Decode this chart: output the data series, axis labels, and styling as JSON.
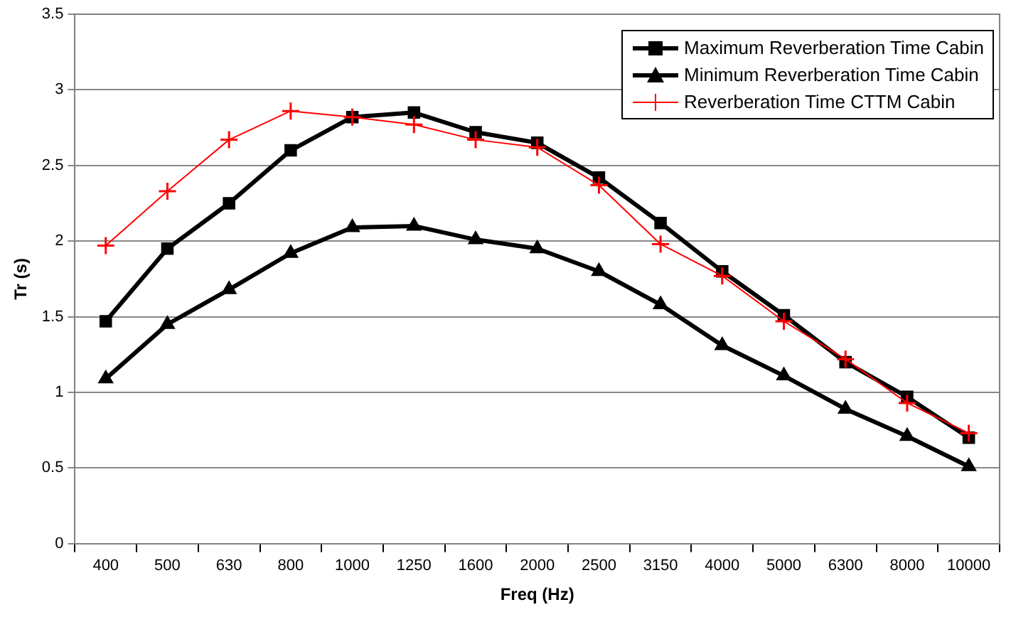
{
  "chart_data": {
    "type": "line",
    "xlabel": "Freq (Hz)",
    "ylabel": "Tr (s)",
    "categories": [
      "400",
      "500",
      "630",
      "800",
      "1000",
      "1250",
      "1600",
      "2000",
      "2500",
      "3150",
      "4000",
      "5000",
      "6300",
      "8000",
      "10000"
    ],
    "ylim": [
      0,
      3.5
    ],
    "yticks": [
      0,
      0.5,
      1,
      1.5,
      2,
      2.5,
      3,
      3.5
    ],
    "grid": "y",
    "legend": "top right",
    "line_style": "solid",
    "series": [
      {
        "name": "Maximum Reverberation Time Cabin",
        "color": "#000000",
        "marker": "square",
        "values": [
          1.47,
          1.95,
          2.25,
          2.6,
          2.82,
          2.85,
          2.72,
          2.65,
          2.42,
          2.12,
          1.8,
          1.51,
          1.2,
          0.97,
          0.7
        ]
      },
      {
        "name": "Minimum Reverberation Time Cabin",
        "color": "#000000",
        "marker": "triangle",
        "values": [
          1.09,
          1.45,
          1.68,
          1.92,
          2.09,
          2.1,
          2.01,
          1.95,
          1.8,
          1.58,
          1.31,
          1.11,
          0.89,
          0.71,
          0.51
        ]
      },
      {
        "name": "Reverberation Time CTTM Cabin",
        "color": "#ff0000",
        "marker": "cross",
        "values": [
          1.97,
          2.33,
          2.67,
          2.86,
          2.82,
          2.77,
          2.67,
          2.62,
          2.37,
          1.98,
          1.77,
          1.47,
          1.22,
          0.93,
          0.73
        ]
      }
    ]
  }
}
